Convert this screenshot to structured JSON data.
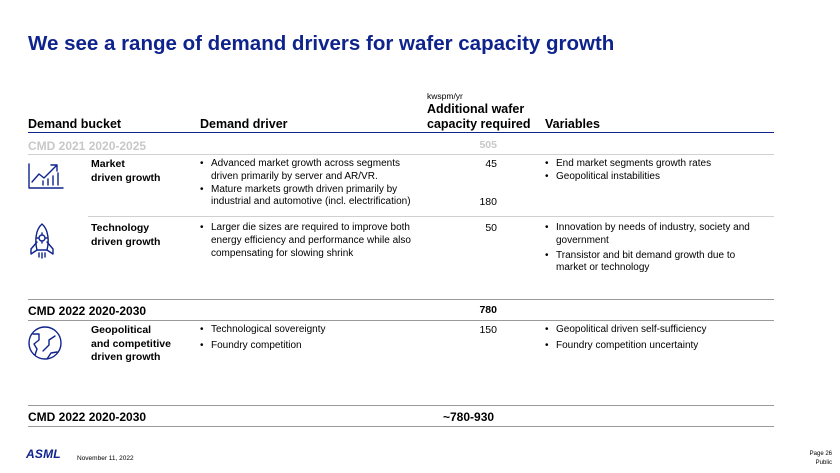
{
  "title": "We see a range of demand drivers for wafer capacity growth",
  "headers": {
    "bucket": "Demand bucket",
    "driver": "Demand driver",
    "unit": "kwspm/yr",
    "capacity_line1": "Additional wafer",
    "capacity_line2": "capacity required",
    "variables": "Variables"
  },
  "cmd2021": {
    "label": "CMD 2021 2020-2025",
    "value": "505"
  },
  "rows": {
    "market": {
      "bucket_line1": "Market",
      "bucket_line2": "driven growth",
      "drivers": [
        "Advanced market growth across segments driven primarily by server and AR/VR.",
        "Mature markets growth driven primarily by industrial and automotive (incl. electrification)"
      ],
      "values": [
        "45",
        "180"
      ],
      "variables": [
        "End market segments growth rates",
        "Geopolitical instabilities"
      ]
    },
    "technology": {
      "bucket_line1": "Technology",
      "bucket_line2": "driven growth",
      "drivers": [
        "Larger die sizes are required to improve both energy efficiency and performance while also compensating for slowing shrink"
      ],
      "value": "50",
      "variables": [
        "Innovation by needs of industry, society and government",
        "Transistor and bit demand growth due to market or technology"
      ]
    },
    "geopolitical": {
      "bucket_line1": "Geopolitical",
      "bucket_line2": "and competitive",
      "bucket_line3": "driven growth",
      "drivers": [
        "Technological sovereignty",
        "Foundry competition"
      ],
      "value": "150",
      "variables": [
        "Geopolitical driven self-sufficiency",
        "Foundry competition uncertainty"
      ]
    }
  },
  "cmd2022a": {
    "label": "CMD 2022 2020-2030",
    "value": "780"
  },
  "cmd2022b": {
    "label": "CMD 2022 2020-2030",
    "value": "~780-930"
  },
  "footer": {
    "logo": "ASML",
    "date": "November 11, 2022",
    "page": "Page 26",
    "classification": "Public"
  },
  "colors": {
    "brand": "#0f238c",
    "muted": "#c8c8c8",
    "rule": "#cccccc"
  }
}
